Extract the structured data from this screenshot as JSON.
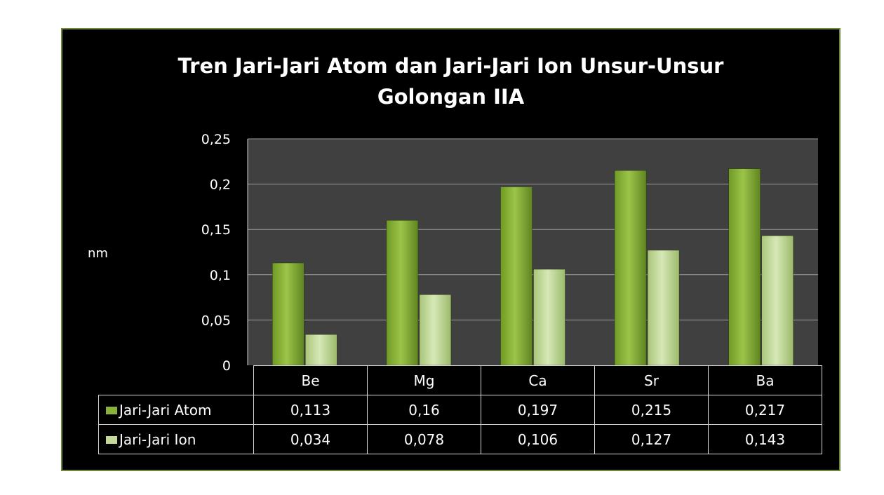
{
  "chart_data": {
    "type": "bar",
    "title_lines": [
      "Tren Jari-Jari Atom dan Jari-Jari Ion Unsur-Unsur",
      "Golongan IIA"
    ],
    "ylabel": "nm",
    "xlabel": "",
    "categories": [
      "Be",
      "Mg",
      "Ca",
      "Sr",
      "Ba"
    ],
    "ylim": [
      0,
      0.25
    ],
    "yticks": [
      0,
      0.05,
      0.1,
      0.15,
      0.2,
      0.25
    ],
    "ytick_labels": [
      "0",
      "0,05",
      "0,1",
      "0,15",
      "0,2",
      "0,25"
    ],
    "grid": true,
    "legend": "data-table",
    "series": [
      {
        "name": "Jari-Jari Atom",
        "values": [
          0.113,
          0.16,
          0.197,
          0.215,
          0.217
        ],
        "value_labels": [
          "0,113",
          "0,16",
          "0,197",
          "0,215",
          "0,217"
        ],
        "color": "#8ab23a"
      },
      {
        "name": "Jari-Jari Ion",
        "values": [
          0.034,
          0.078,
          0.106,
          0.127,
          0.143
        ],
        "value_labels": [
          "0,034",
          "0,078",
          "0,106",
          "0,127",
          "0,143"
        ],
        "color": "#c3d99a"
      }
    ]
  }
}
